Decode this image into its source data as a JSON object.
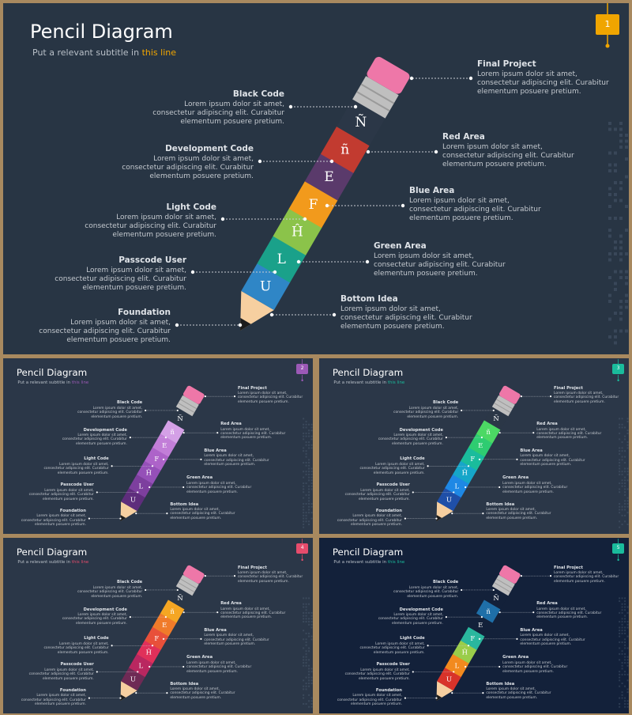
{
  "slides": [
    {
      "title": "Pencil Diagram",
      "subtitle_pre": "Put a relevant subtitle in ",
      "subtitle_hl": "this line",
      "badge": "1",
      "bg": "#283544",
      "accent": "#f0a500",
      "segments": [
        {
          "letter": "Ñ",
          "color": "#2b3747"
        },
        {
          "letter": "ñ",
          "color": "#c23b30"
        },
        {
          "letter": "E",
          "color": "#5a3a6b"
        },
        {
          "letter": "F",
          "color": "#f29a1c"
        },
        {
          "letter": "Ĥ",
          "color": "#8bc34a"
        },
        {
          "letter": "L",
          "color": "#1aa18a"
        },
        {
          "letter": "U",
          "color": "#2f86c6"
        }
      ]
    },
    {
      "title": "Pencil Diagram",
      "subtitle_pre": "Put a relevant subtitle in ",
      "subtitle_hl": "this line",
      "badge": "2",
      "bg": "#2b3748",
      "accent": "#9b59b6",
      "segments": [
        {
          "letter": "Ñ",
          "color": "#2b3747"
        },
        {
          "letter": "ñ",
          "color": "#d4a0e6"
        },
        {
          "letter": "E",
          "color": "#c27ed8"
        },
        {
          "letter": "F",
          "color": "#ad63c9"
        },
        {
          "letter": "Ĥ",
          "color": "#9550b8"
        },
        {
          "letter": "L",
          "color": "#7d3f9e"
        },
        {
          "letter": "U",
          "color": "#5e2d7c"
        }
      ]
    },
    {
      "title": "Pencil Diagram",
      "subtitle_pre": "Put a relevant subtitle in ",
      "subtitle_hl": "this line",
      "badge": "3",
      "bg": "#2b3748",
      "accent": "#1abc9c",
      "segments": [
        {
          "letter": "Ñ",
          "color": "#2b3747"
        },
        {
          "letter": "ñ",
          "color": "#4cd964"
        },
        {
          "letter": "E",
          "color": "#2ecc71"
        },
        {
          "letter": "F",
          "color": "#1abc9c"
        },
        {
          "letter": "Ĥ",
          "color": "#16a6c9"
        },
        {
          "letter": "L",
          "color": "#1e88e5"
        },
        {
          "letter": "U",
          "color": "#1f4fa8"
        }
      ]
    },
    {
      "title": "Pencil Diagram",
      "subtitle_pre": "Put a relevant subtitle in ",
      "subtitle_hl": "this line",
      "badge": "4",
      "bg": "#2b3748",
      "accent": "#e74c6c",
      "segments": [
        {
          "letter": "Ñ",
          "color": "#2b3747"
        },
        {
          "letter": "ñ",
          "color": "#f5a623"
        },
        {
          "letter": "E",
          "color": "#f07b2a"
        },
        {
          "letter": "F",
          "color": "#e8503a"
        },
        {
          "letter": "Ĥ",
          "color": "#e0305a"
        },
        {
          "letter": "L",
          "color": "#b92760"
        },
        {
          "letter": "U",
          "color": "#6e2a55"
        }
      ]
    },
    {
      "title": "Pencil Diagram",
      "subtitle_pre": "Put a relevant subtitle in ",
      "subtitle_hl": "this line",
      "badge": "5",
      "bg": "#13213a",
      "accent": "#1abc9c",
      "segments": [
        {
          "letter": "Ñ",
          "color": "#13213a"
        },
        {
          "letter": "ñ",
          "color": "#1f6fa8"
        },
        {
          "letter": "E",
          "color": "#13213a"
        },
        {
          "letter": "F",
          "color": "#2ab79e"
        },
        {
          "letter": "Ĥ",
          "color": "#9acd4a"
        },
        {
          "letter": "L",
          "color": "#f28a1e"
        },
        {
          "letter": "U",
          "color": "#d8332a"
        }
      ]
    }
  ],
  "left_labels": [
    {
      "heading": "Black Code",
      "body": "Lorem ipsum dolor sit amet, consectetur adipiscing elit. Curabitur elementum posuere pretium."
    },
    {
      "heading": "Development Code",
      "body": "Lorem ipsum dolor sit amet, consectetur adipiscing elit. Curabitur elementum posuere pretium."
    },
    {
      "heading": "Light Code",
      "body": "Lorem ipsum dolor sit amet, consectetur adipiscing elit. Curabitur elementum posuere pretium."
    },
    {
      "heading": "Passcode User",
      "body": "Lorem ipsum dolor sit amet, consectetur adipiscing elit. Curabitur elementum posuere pretium."
    },
    {
      "heading": "Foundation",
      "body": "Lorem ipsum dolor sit amet, consectetur adipiscing elit. Curabitur elementum posuere pretium."
    }
  ],
  "right_labels": [
    {
      "heading": "Final Project",
      "body": "Lorem ipsum dolor sit amet, consectetur adipiscing elit. Curabitur elementum posuere pretium."
    },
    {
      "heading": "Red Area",
      "body": "Lorem ipsum dolor sit amet, consectetur adipiscing elit. Curabitur elementum posuere pretium."
    },
    {
      "heading": "Blue Area",
      "body": "Lorem ipsum dolor sit amet, consectetur adipiscing elit. Curabitur elementum posuere pretium."
    },
    {
      "heading": "Green Area",
      "body": "Lorem ipsum dolor sit amet, consectetur adipiscing elit. Curabitur elementum posuere pretium."
    },
    {
      "heading": "Bottom Idea",
      "body": "Lorem ipsum dolor sit amet, consectetur adipiscing elit. Curabitur elementum posuere pretium."
    }
  ],
  "colors": {
    "eraser": "#ee77a8",
    "ferrule": "#bfbfbf",
    "wood": "#f6cfa0",
    "lead": "#1c1c1c",
    "connector": "#c8ccd2"
  }
}
